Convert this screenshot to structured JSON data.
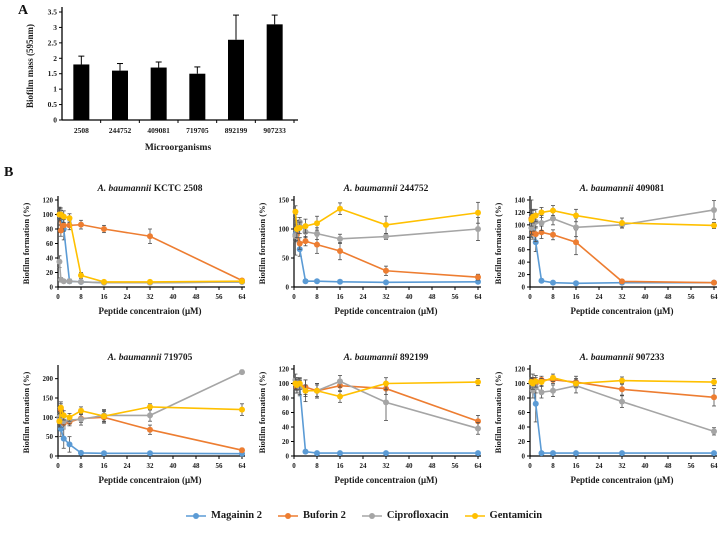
{
  "panels": {
    "a_label": "A",
    "b_label": "B"
  },
  "colors": {
    "Magainin 2": "#5B9BD5",
    "Buforin 2": "#ED7D31",
    "Ciprofloxacin": "#A5A5A5",
    "Gentamicin": "#FFC000"
  },
  "legend": {
    "items": [
      {
        "label": "Magainin 2",
        "color": "#5B9BD5"
      },
      {
        "label": "Buforin 2",
        "color": "#ED7D31"
      },
      {
        "label": "Ciprofloxacin",
        "color": "#A5A5A5"
      },
      {
        "label": "Gentamicin",
        "color": "#FFC000"
      }
    ]
  },
  "chart_data": [
    {
      "id": "biofilm-mass",
      "panel": "A",
      "type": "bar",
      "title": "",
      "xlabel": "Microorganisms",
      "ylabel": "Biofilm mass (595nm)",
      "categories": [
        "2508",
        "244752",
        "409081",
        "719705",
        "892199",
        "907233"
      ],
      "values": [
        1.8,
        1.6,
        1.7,
        1.5,
        2.6,
        3.1
      ],
      "errors": [
        0.27,
        0.23,
        0.18,
        0.22,
        0.8,
        0.3
      ],
      "ylim": [
        0,
        3.5
      ],
      "yticks": [
        0,
        0.5,
        1,
        1.5,
        2,
        2.5,
        3,
        3.5
      ],
      "bar_color": "#000000"
    },
    {
      "id": "kctc-2508",
      "panel": "B",
      "type": "line",
      "title_italic": "A. baumannii",
      "title_rest": "KCTC 2508",
      "xlabel": "Peptide concentraion (μM)",
      "ylabel": "Biofilm formation (%)",
      "x": [
        0.5,
        1,
        2,
        4,
        8,
        16,
        32,
        64
      ],
      "xticks": [
        0,
        8,
        16,
        24,
        32,
        40,
        48,
        56,
        64
      ],
      "ylim": [
        0,
        120
      ],
      "yticks": [
        0,
        20,
        40,
        60,
        80,
        100,
        120
      ],
      "series": [
        {
          "name": "Magainin 2",
          "values": [
            100,
            97,
            80,
            8,
            7,
            6,
            6,
            7
          ],
          "errors": [
            10,
            12,
            15,
            3,
            2,
            2,
            2,
            2
          ]
        },
        {
          "name": "Buforin 2",
          "values": [
            100,
            78,
            85,
            85,
            86,
            80,
            70,
            9
          ],
          "errors": [
            10,
            8,
            8,
            6,
            6,
            5,
            10,
            2
          ]
        },
        {
          "name": "Ciprofloxacin",
          "values": [
            35,
            10,
            8,
            8,
            7,
            6,
            6,
            7
          ],
          "errors": [
            8,
            3,
            2,
            2,
            2,
            2,
            2,
            2
          ]
        },
        {
          "name": "Gentamicin",
          "values": [
            100,
            100,
            97,
            95,
            16,
            7,
            7,
            8
          ],
          "errors": [
            8,
            6,
            8,
            6,
            4,
            2,
            2,
            2
          ]
        }
      ]
    },
    {
      "id": "244752",
      "panel": "B",
      "type": "line",
      "title_italic": "A. baumannii",
      "title_rest": "244752",
      "xlabel": "Peptide concentraion (μM)",
      "ylabel": "Biofilm formation (%)",
      "x": [
        0.5,
        1,
        2,
        4,
        8,
        16,
        32,
        64
      ],
      "xticks": [
        0,
        8,
        16,
        24,
        32,
        40,
        48,
        56,
        64
      ],
      "ylim": [
        0,
        150
      ],
      "yticks": [
        0,
        50,
        100,
        150
      ],
      "series": [
        {
          "name": "Magainin 2",
          "values": [
            90,
            95,
            65,
            10,
            10,
            9,
            8,
            9
          ],
          "errors": [
            35,
            10,
            12,
            3,
            3,
            2,
            2,
            2
          ]
        },
        {
          "name": "Buforin 2",
          "values": [
            88,
            90,
            75,
            79,
            73,
            62,
            28,
            17
          ],
          "errors": [
            10,
            10,
            10,
            8,
            15,
            15,
            8,
            5
          ]
        },
        {
          "name": "Ciprofloxacin",
          "values": [
            88,
            100,
            112,
            95,
            92,
            83,
            87,
            100
          ],
          "errors": [
            10,
            8,
            8,
            10,
            10,
            8,
            5,
            20
          ]
        },
        {
          "name": "Gentamicin",
          "values": [
            130,
            100,
            102,
            105,
            110,
            135,
            107,
            128
          ],
          "errors": [
            10,
            15,
            10,
            12,
            12,
            10,
            15,
            18
          ]
        }
      ]
    },
    {
      "id": "409081",
      "panel": "B",
      "type": "line",
      "title_italic": "A. baumannii",
      "title_rest": "409081",
      "xlabel": "Peptide concentraion (μM)",
      "ylabel": "Biofilm formation (%)",
      "x": [
        0.5,
        1,
        2,
        4,
        8,
        16,
        32,
        64
      ],
      "xticks": [
        0,
        8,
        16,
        24,
        32,
        40,
        48,
        56,
        64
      ],
      "ylim": [
        0,
        140
      ],
      "yticks": [
        0,
        20,
        40,
        60,
        80,
        100,
        120,
        140
      ],
      "series": [
        {
          "name": "Magainin 2",
          "values": [
            110,
            105,
            72,
            10,
            7,
            6,
            7,
            7
          ],
          "errors": [
            30,
            20,
            15,
            3,
            2,
            2,
            2,
            2
          ]
        },
        {
          "name": "Buforin 2",
          "values": [
            110,
            87,
            85,
            88,
            84,
            72,
            9,
            7
          ],
          "errors": [
            15,
            10,
            12,
            10,
            8,
            20,
            3,
            2
          ]
        },
        {
          "name": "Ciprofloxacin",
          "values": [
            95,
            100,
            105,
            103,
            110,
            96,
            100,
            124
          ],
          "errors": [
            10,
            10,
            10,
            12,
            10,
            15,
            5,
            15
          ]
        },
        {
          "name": "Gentamicin",
          "values": [
            108,
            113,
            115,
            120,
            123,
            115,
            103,
            99
          ],
          "errors": [
            10,
            10,
            10,
            8,
            8,
            10,
            8,
            5
          ]
        }
      ]
    },
    {
      "id": "719705",
      "panel": "B",
      "type": "line",
      "title_italic": "A. baumannii",
      "title_rest": "719705",
      "xlabel": "Peptide concentraion (μM)",
      "ylabel": "Biofilm formation (%)",
      "x": [
        0.5,
        1,
        2,
        4,
        8,
        16,
        32,
        64
      ],
      "xticks": [
        0,
        8,
        16,
        24,
        32,
        40,
        48,
        56,
        64
      ],
      "ylim": [
        0,
        225
      ],
      "yticks": [
        0,
        50,
        100,
        150,
        200
      ],
      "series": [
        {
          "name": "Magainin 2",
          "values": [
            100,
            70,
            45,
            30,
            8,
            7,
            7,
            6
          ],
          "errors": [
            25,
            20,
            25,
            20,
            5,
            3,
            3,
            2
          ]
        },
        {
          "name": "Buforin 2",
          "values": [
            90,
            120,
            85,
            88,
            97,
            100,
            68,
            15
          ],
          "errors": [
            15,
            15,
            10,
            10,
            10,
            15,
            12,
            5
          ]
        },
        {
          "name": "Ciprofloxacin",
          "values": [
            100,
            95,
            90,
            93,
            95,
            105,
            105,
            217
          ],
          "errors": [
            10,
            10,
            10,
            10,
            15,
            15,
            15,
            5
          ]
        },
        {
          "name": "Gentamicin",
          "values": [
            90,
            125,
            105,
            100,
            117,
            103,
            127,
            120
          ],
          "errors": [
            10,
            15,
            12,
            10,
            10,
            15,
            8,
            15
          ]
        }
      ]
    },
    {
      "id": "892199",
      "panel": "B",
      "type": "line",
      "title_italic": "A. baumannii",
      "title_rest": "892199",
      "xlabel": "Peptide concentraion (μM)",
      "ylabel": "Biofilm formation (%)",
      "x": [
        0.5,
        1,
        2,
        4,
        8,
        16,
        32,
        64
      ],
      "xticks": [
        0,
        8,
        16,
        24,
        32,
        40,
        48,
        56,
        64
      ],
      "ylim": [
        0,
        120
      ],
      "yticks": [
        0,
        20,
        40,
        60,
        80,
        100,
        120
      ],
      "series": [
        {
          "name": "Magainin 2",
          "values": [
            100,
            97,
            95,
            6,
            4,
            4,
            4,
            4
          ],
          "errors": [
            8,
            10,
            12,
            2,
            2,
            2,
            2,
            2
          ]
        },
        {
          "name": "Buforin 2",
          "values": [
            100,
            95,
            98,
            95,
            90,
            97,
            93,
            48
          ],
          "errors": [
            8,
            8,
            6,
            10,
            8,
            8,
            8,
            8
          ]
        },
        {
          "name": "Ciprofloxacin",
          "values": [
            105,
            100,
            95,
            90,
            90,
            103,
            74,
            38
          ],
          "errors": [
            8,
            8,
            10,
            15,
            10,
            8,
            25,
            8
          ]
        },
        {
          "name": "Gentamicin",
          "values": [
            100,
            98,
            100,
            90,
            90,
            82,
            100,
            102
          ],
          "errors": [
            8,
            8,
            8,
            8,
            10,
            8,
            8,
            5
          ]
        }
      ]
    },
    {
      "id": "907233",
      "panel": "B",
      "type": "line",
      "title_italic": "A. baumannii",
      "title_rest": "907233",
      "xlabel": "Peptide concentraion (μM)",
      "ylabel": "Biofilm formation (%)",
      "x": [
        0.5,
        1,
        2,
        4,
        8,
        16,
        32,
        64
      ],
      "xticks": [
        0,
        8,
        16,
        24,
        32,
        40,
        48,
        56,
        64
      ],
      "ylim": [
        0,
        120
      ],
      "yticks": [
        0,
        20,
        40,
        60,
        80,
        100,
        120
      ],
      "series": [
        {
          "name": "Magainin 2",
          "values": [
            100,
            100,
            72,
            4,
            4,
            4,
            4,
            4
          ],
          "errors": [
            5,
            8,
            25,
            2,
            2,
            2,
            2,
            2
          ]
        },
        {
          "name": "Buforin 2",
          "values": [
            102,
            105,
            100,
            105,
            105,
            102,
            92,
            81
          ],
          "errors": [
            5,
            8,
            8,
            5,
            5,
            8,
            8,
            12
          ]
        },
        {
          "name": "Ciprofloxacin",
          "values": [
            100,
            90,
            95,
            88,
            90,
            97,
            75,
            34
          ],
          "errors": [
            8,
            10,
            8,
            8,
            8,
            10,
            8,
            5
          ]
        },
        {
          "name": "Gentamicin",
          "values": [
            102,
            100,
            103,
            102,
            108,
            100,
            104,
            102
          ],
          "errors": [
            5,
            8,
            8,
            5,
            5,
            5,
            5,
            5
          ]
        }
      ]
    }
  ]
}
